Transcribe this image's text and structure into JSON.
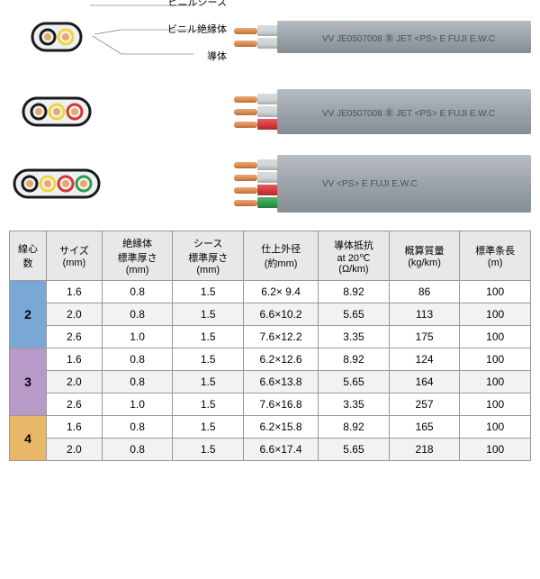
{
  "labels": {
    "sheath": "ビニルシース",
    "insulation": "ビニル絶縁体",
    "conductor": "導体"
  },
  "cables": [
    {
      "cores": 2,
      "core_colors": [
        "#1a1a1a",
        "#f2d43a"
      ],
      "wire_insul_colors": [
        "#cfd3d6",
        "#cfd3d6"
      ],
      "print": "VV  JE0507008  ㊎ JET  <PS>  E  FUJI  E.W.C",
      "showLabels": true
    },
    {
      "cores": 3,
      "core_colors": [
        "#1a1a1a",
        "#f2d43a",
        "#d6363a"
      ],
      "wire_insul_colors": [
        "#cfd3d6",
        "#cfd3d6",
        "#d6363a"
      ],
      "print": "VV  JE0507008  ㊎ JET  <PS>  E  FUJI  E.W.C",
      "showLabels": false
    },
    {
      "cores": 4,
      "core_colors": [
        "#1a1a1a",
        "#f2d43a",
        "#d6363a",
        "#2e9e4a"
      ],
      "wire_insul_colors": [
        "#cfd3d6",
        "#cfd3d6",
        "#d6363a",
        "#2e9e4a"
      ],
      "print": "VV  <PS>  E  FUJI  E.W.C",
      "showLabels": false
    }
  ],
  "cross_section_style": {
    "shell_fill": "#eef1f3",
    "shell_stroke": "#1a1a1a",
    "shell_stroke_width": 3,
    "core_ring_stroke_width": 3,
    "core_radius": 8,
    "inner_radius": 4,
    "inner_fill": "#e8a868"
  },
  "table": {
    "headers": [
      "線心数",
      "サイズ\n(mm)",
      "絶縁体\n標準厚さ\n(mm)",
      "シース\n標準厚さ\n(mm)",
      "仕上外径\n(約mm)",
      "導体抵抗\nat 20℃\n(Ω/km)",
      "概算質量\n(kg/km)",
      "標準条長\n(m)"
    ],
    "groups": [
      {
        "core": "2",
        "color": "#7aa8d6",
        "rows": [
          [
            "1.6",
            "0.8",
            "1.5",
            "6.2× 9.4",
            "8.92",
            "86",
            "100"
          ],
          [
            "2.0",
            "0.8",
            "1.5",
            "6.6×10.2",
            "5.65",
            "113",
            "100"
          ],
          [
            "2.6",
            "1.0",
            "1.5",
            "7.6×12.2",
            "3.35",
            "175",
            "100"
          ]
        ]
      },
      {
        "core": "3",
        "color": "#b89ac8",
        "rows": [
          [
            "1.6",
            "0.8",
            "1.5",
            "6.2×12.6",
            "8.92",
            "124",
            "100"
          ],
          [
            "2.0",
            "0.8",
            "1.5",
            "6.6×13.8",
            "5.65",
            "164",
            "100"
          ],
          [
            "2.6",
            "1.0",
            "1.5",
            "7.6×16.8",
            "3.35",
            "257",
            "100"
          ]
        ]
      },
      {
        "core": "4",
        "color": "#e8b868",
        "rows": [
          [
            "1.6",
            "0.8",
            "1.5",
            "6.2×15.8",
            "8.92",
            "165",
            "100"
          ],
          [
            "2.0",
            "0.8",
            "1.5",
            "6.6×17.4",
            "5.65",
            "218",
            "100"
          ]
        ]
      }
    ]
  },
  "colors": {
    "sheath_gradient": [
      "#b6bcc2",
      "#9ca3ab",
      "#868d95"
    ],
    "copper": "#d98850"
  }
}
